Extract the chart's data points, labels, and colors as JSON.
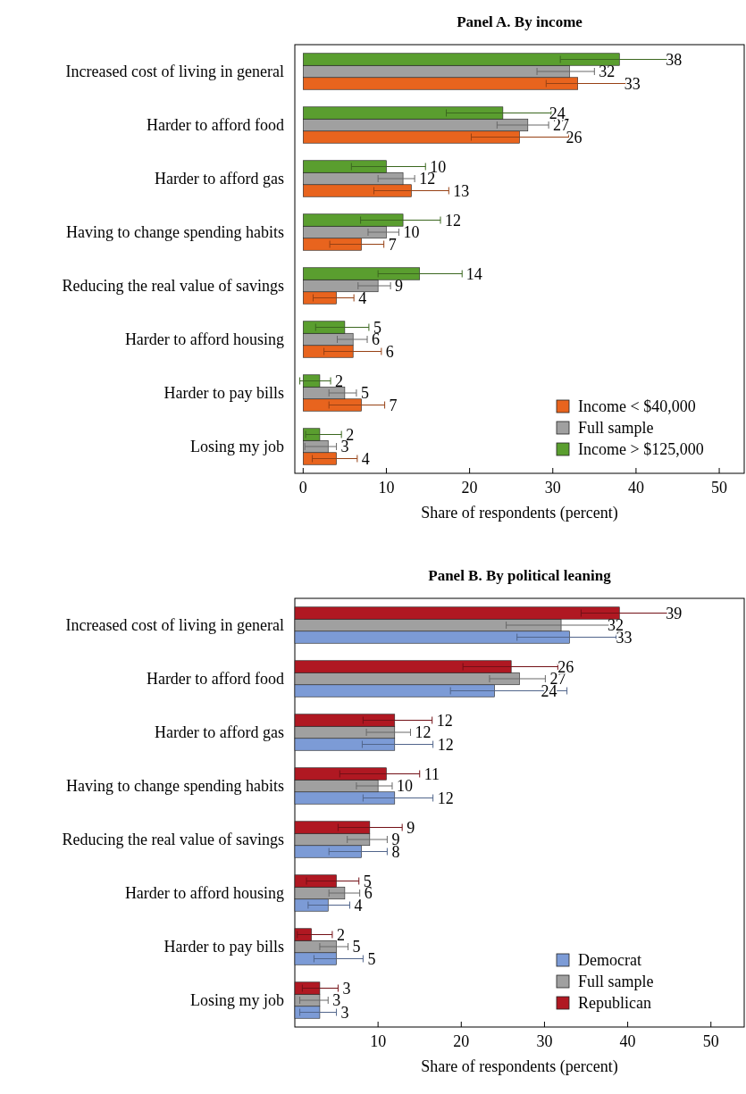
{
  "chart_data": [
    {
      "type": "bar",
      "orientation": "horizontal",
      "title": "Panel A. By income",
      "xlabel": "Share of respondents (percent)",
      "categories": [
        "Increased cost of living in general",
        "Harder to afford food",
        "Harder to afford gas",
        "Having to change spending habits",
        "Reducing the real value of savings",
        "Harder to afford housing",
        "Harder to pay bills",
        "Losing my job"
      ],
      "xlim": [
        -1,
        53
      ],
      "xticks": [
        0,
        10,
        20,
        30,
        40,
        50
      ],
      "legend": "bottom right",
      "data_labels": true,
      "series": [
        {
          "name": "Income < $40,000",
          "color": "#e8641e",
          "values": [
            33,
            26,
            13,
            7,
            4,
            6,
            7,
            4
          ],
          "errors": [
            [
              29.2,
              38.8
            ],
            [
              20.2,
              31.9
            ],
            [
              8.5,
              17.5
            ],
            [
              3.2,
              9.7
            ],
            [
              1.2,
              6.1
            ],
            [
              2.5,
              9.4
            ],
            [
              3.1,
              9.8
            ],
            [
              1.1,
              6.5
            ]
          ]
        },
        {
          "name": "Full sample",
          "color": "#a0a0a0",
          "values": [
            32,
            27,
            12,
            10,
            9,
            6,
            5,
            3
          ],
          "errors": [
            [
              28.1,
              35.0
            ],
            [
              23.3,
              29.5
            ],
            [
              9.0,
              13.4
            ],
            [
              7.8,
              11.5
            ],
            [
              6.6,
              10.5
            ],
            [
              4.1,
              7.7
            ],
            [
              3.1,
              6.4
            ],
            [
              0.2,
              4.0
            ]
          ]
        },
        {
          "name": "Income > $125,000",
          "color": "#5a9e2f",
          "values": [
            38,
            24,
            10,
            12,
            14,
            5,
            2,
            2
          ],
          "errors": [
            [
              30.9,
              44.8
            ],
            [
              17.2,
              29.8
            ],
            [
              5.8,
              14.7
            ],
            [
              6.9,
              16.5
            ],
            [
              9.0,
              19.1
            ],
            [
              1.5,
              7.9
            ],
            [
              -0.4,
              3.3
            ],
            [
              0.3,
              4.6
            ]
          ]
        }
      ]
    },
    {
      "type": "bar",
      "orientation": "horizontal",
      "title": "Panel B. By political leaning",
      "xlabel": "Share of respondents (percent)",
      "categories": [
        "Increased cost of living in general",
        "Harder to afford food",
        "Harder to afford gas",
        "Having to change spending habits",
        "Reducing the real value of savings",
        "Harder to afford housing",
        "Harder to pay bills",
        "Losing my job"
      ],
      "xlim": [
        0,
        54
      ],
      "xticks": [
        10,
        20,
        30,
        40,
        50
      ],
      "legend": "bottom right",
      "data_labels": true,
      "series": [
        {
          "name": "Democrat",
          "color": "#7c9bd6",
          "values": [
            33,
            24,
            12,
            12,
            8,
            4,
            5,
            3
          ],
          "errors": [
            [
              26.7,
              38.6
            ],
            [
              18.7,
              32.7
            ],
            [
              8.1,
              16.6
            ],
            [
              8.2,
              16.6
            ],
            [
              4.1,
              11.1
            ],
            [
              1.6,
              6.6
            ],
            [
              2.3,
              8.2
            ],
            [
              0.6,
              5.0
            ]
          ]
        },
        {
          "name": "Full sample",
          "color": "#a0a0a0",
          "values": [
            32,
            27,
            12,
            10,
            9,
            6,
            5,
            3
          ],
          "errors": [
            [
              25.4,
              38.2
            ],
            [
              23.4,
              30.1
            ],
            [
              8.6,
              13.9
            ],
            [
              7.4,
              11.7
            ],
            [
              6.3,
              11.1
            ],
            [
              4.1,
              7.8
            ],
            [
              3.0,
              6.4
            ],
            [
              0.6,
              4.0
            ]
          ]
        },
        {
          "name": "Republican",
          "color": "#b01822",
          "values": [
            39,
            26,
            12,
            11,
            9,
            5,
            2,
            3
          ],
          "errors": [
            [
              34.4,
              45.9
            ],
            [
              20.2,
              31.6
            ],
            [
              8.2,
              16.5
            ],
            [
              5.4,
              15.0
            ],
            [
              5.2,
              12.9
            ],
            [
              1.4,
              7.7
            ],
            [
              0.3,
              4.5
            ],
            [
              0.9,
              5.2
            ]
          ]
        }
      ]
    }
  ]
}
